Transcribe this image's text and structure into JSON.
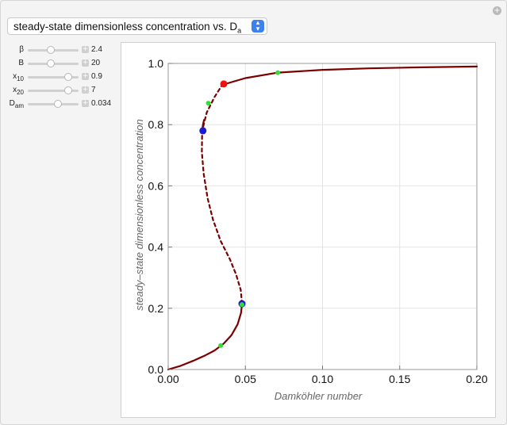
{
  "dropdown": {
    "label": "steady-state dimensionless concentration vs. D",
    "label_sub": "a"
  },
  "corner_icon": "plus-icon",
  "controls": [
    {
      "name": "beta",
      "label": "β",
      "label_sub": "",
      "value": "2.4",
      "fraction": 0.45
    },
    {
      "name": "B",
      "label": "B",
      "label_sub": "",
      "value": "20",
      "fraction": 0.45
    },
    {
      "name": "x10",
      "label": "x",
      "label_sub": "10",
      "value": "0.9",
      "fraction": 0.8
    },
    {
      "name": "x20",
      "label": "x",
      "label_sub": "20",
      "value": "7",
      "fraction": 0.8
    },
    {
      "name": "Dam",
      "label": "D",
      "label_sub": "am",
      "value": "0.034",
      "fraction": 0.6
    }
  ],
  "chart_data": {
    "type": "line",
    "title": "",
    "xlabel": "Damköhler number",
    "ylabel": "steady–state dimensionless concentration",
    "xlim": [
      0,
      0.2
    ],
    "ylim": [
      0,
      1.0
    ],
    "xticks": [
      "0.00",
      "0.05",
      "0.10",
      "0.15",
      "0.20"
    ],
    "yticks": [
      "0.0",
      "0.2",
      "0.4",
      "0.6",
      "0.8",
      "1.0"
    ],
    "xtick_values": [
      0,
      0.05,
      0.1,
      0.15,
      0.2
    ],
    "ytick_values": [
      0,
      0.2,
      0.4,
      0.6,
      0.8,
      1.0
    ],
    "grid": true,
    "line_color": "#7a0000",
    "series": [
      {
        "style": "solid",
        "points": [
          [
            0,
            0
          ],
          [
            0.008,
            0.012
          ],
          [
            0.016,
            0.028
          ],
          [
            0.024,
            0.046
          ],
          [
            0.03,
            0.062
          ],
          [
            0.036,
            0.085
          ],
          [
            0.041,
            0.112
          ],
          [
            0.045,
            0.148
          ],
          [
            0.0472,
            0.185
          ],
          [
            0.0478,
            0.215
          ]
        ]
      },
      {
        "style": "dashed",
        "points": [
          [
            0.0478,
            0.215
          ],
          [
            0.047,
            0.26
          ],
          [
            0.044,
            0.31
          ],
          [
            0.04,
            0.36
          ],
          [
            0.034,
            0.42
          ],
          [
            0.029,
            0.49
          ],
          [
            0.0255,
            0.56
          ],
          [
            0.023,
            0.64
          ],
          [
            0.0218,
            0.71
          ],
          [
            0.022,
            0.78
          ],
          [
            0.025,
            0.84
          ],
          [
            0.03,
            0.89
          ],
          [
            0.035,
            0.93
          ]
        ]
      },
      {
        "style": "solid",
        "points": [
          [
            0.022,
            0.78
          ],
          [
            0.0225,
            0.8
          ],
          [
            0.0232,
            0.815
          ]
        ]
      },
      {
        "style": "solid",
        "points": [
          [
            0.035,
            0.93
          ],
          [
            0.05,
            0.952
          ],
          [
            0.071,
            0.97
          ],
          [
            0.1,
            0.979
          ],
          [
            0.13,
            0.984
          ],
          [
            0.16,
            0.987
          ],
          [
            0.2,
            0.99
          ]
        ]
      }
    ],
    "markers": [
      {
        "x": 0.071,
        "y": 0.97,
        "color": "#33dd33",
        "r": 3
      },
      {
        "x": 0.026,
        "y": 0.87,
        "color": "#33dd33",
        "r": 3
      },
      {
        "x": 0.036,
        "y": 0.933,
        "color": "#ee1111",
        "r": 4.5
      },
      {
        "x": 0.0225,
        "y": 0.78,
        "color": "#1a1ad0",
        "r": 4.5
      },
      {
        "x": 0.0478,
        "y": 0.215,
        "color": "#1a1ad0",
        "r": 4.5
      },
      {
        "x": 0.0478,
        "y": 0.212,
        "color": "#33dd33",
        "r": 3
      },
      {
        "x": 0.034,
        "y": 0.078,
        "color": "#33dd33",
        "r": 3
      }
    ]
  }
}
